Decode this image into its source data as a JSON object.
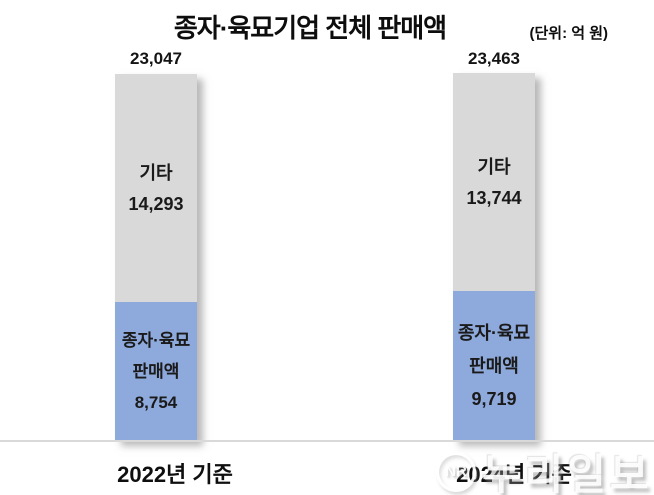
{
  "title": "종자·육묘기업 전체 판매액",
  "unit": "(단위: 억 원)",
  "bars": {
    "left": {
      "category": "2022년 기준",
      "total": "23,047",
      "other_label": "기타",
      "other_value": "14,293",
      "seed_label_line1": "종자·육묘",
      "seed_label_line2": "판매액",
      "seed_value": "8,754"
    },
    "right": {
      "category": "2024년 기준",
      "total": "23,463",
      "other_label": "기타",
      "other_value": "13,744",
      "seed_label_line1": "종자·육묘",
      "seed_label_line2": "판매액",
      "seed_value": "9,719"
    }
  },
  "watermark": {
    "logo": "NR",
    "text": "누리일보"
  },
  "colors": {
    "other_segment": "#d9d9d9",
    "seed_segment": "#8ea9db",
    "baseline": "#d9d9d9",
    "text": "#1a1a1a"
  },
  "chart_data": {
    "type": "bar",
    "stacked": true,
    "title": "종자·육묘기업 전체 판매액",
    "unit": "억 원",
    "categories": [
      "2022년 기준",
      "2024년 기준"
    ],
    "series": [
      {
        "name": "종자·육묘 판매액",
        "values": [
          8754,
          9719
        ],
        "color": "#8ea9db"
      },
      {
        "name": "기타",
        "values": [
          14293,
          13744
        ],
        "color": "#d9d9d9"
      }
    ],
    "totals": [
      23047,
      23463
    ],
    "value_labels": true,
    "legend_position": "none",
    "grid": false,
    "ylim": [
      0,
      24000
    ]
  }
}
